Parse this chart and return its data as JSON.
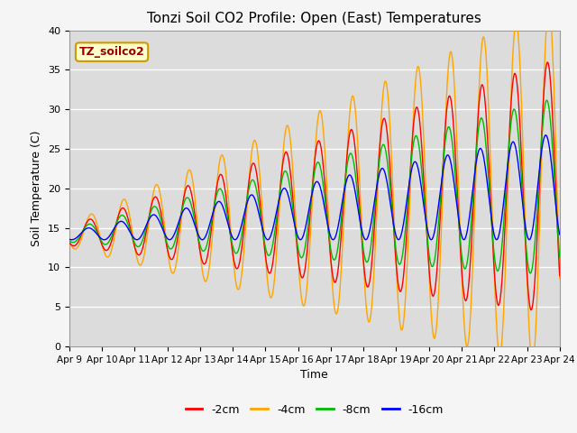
{
  "title": "Tonzi Soil CO2 Profile: Open (East) Temperatures",
  "xlabel": "Time",
  "ylabel": "Soil Temperature (C)",
  "ylim": [
    0,
    40
  ],
  "xlim": [
    0,
    15
  ],
  "bg_color": "#dcdcdc",
  "series": [
    "-2cm",
    "-4cm",
    "-8cm",
    "-16cm"
  ],
  "colors": [
    "#ff0000",
    "#ffa500",
    "#00bb00",
    "#0000ff"
  ],
  "xtick_labels": [
    "Apr 9",
    "Apr 10",
    "Apr 11",
    "Apr 12",
    "Apr 13",
    "Apr 14",
    "Apr 15",
    "Apr 16",
    "Apr 17",
    "Apr 18",
    "Apr 19",
    "Apr 20",
    "Apr 21",
    "Apr 22",
    "Apr 23",
    "Apr 24"
  ],
  "label_box_text": "TZ_soilco2",
  "label_box_color": "#ffffcc",
  "label_box_text_color": "#990000"
}
